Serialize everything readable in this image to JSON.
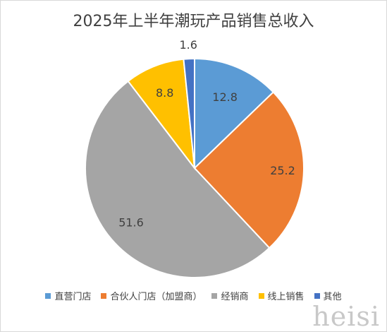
{
  "chart_data": {
    "type": "pie",
    "title": "2025年上半年潮玩产品销售总收入",
    "categories": [
      "直营门店",
      "合伙人门店（加盟商）",
      "经销商",
      "线上销售",
      "其他"
    ],
    "values": [
      12.8,
      25.2,
      51.6,
      8.8,
      1.6
    ],
    "colors": [
      "#5b9bd5",
      "#ed7d31",
      "#a5a5a5",
      "#ffc000",
      "#4472c4"
    ],
    "data_labels": [
      "12.8",
      "25.2",
      "51.6",
      "8.8",
      "1.6"
    ],
    "legend_position": "bottom",
    "start_angle_deg": 0,
    "direction": "clockwise"
  },
  "watermark": "heisi"
}
